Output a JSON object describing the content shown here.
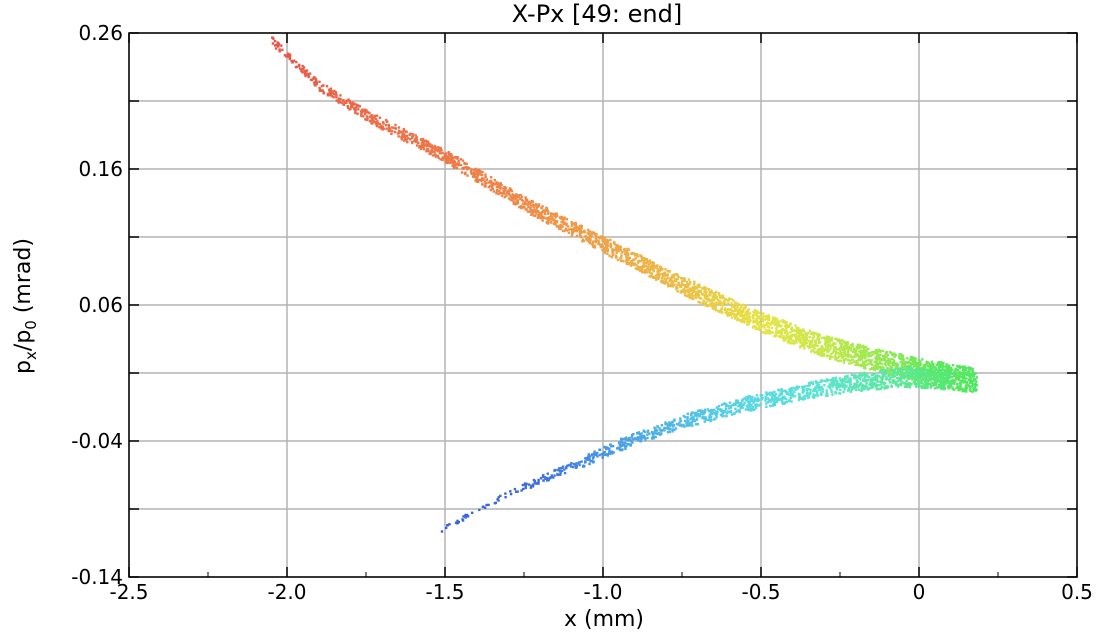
{
  "chart_data": {
    "type": "scatter",
    "title": "X-Px [49: end]",
    "xlabel": "x (mm)",
    "ylabel_parts": {
      "p": "p",
      "x_sub": "x",
      "slash": "/",
      "p0": "p",
      "zero_sub": "0",
      "unit": " (mrad)"
    },
    "xlim": [
      -2.5,
      0.5
    ],
    "ylim": [
      -0.14,
      0.26
    ],
    "xticks": [
      -2.5,
      -2.0,
      -1.5,
      -1.0,
      -0.5,
      0,
      0.5
    ],
    "xtick_labels": [
      "-2.5",
      "-2.0",
      "-1.5",
      "-1.0",
      "-0.5",
      "0",
      "0.5"
    ],
    "yticks": [
      -0.14,
      -0.04,
      0.06,
      0.16,
      0.26
    ],
    "ytick_labels": [
      "-0.14",
      "-0.04",
      "0.06",
      "0.16",
      "0.26"
    ],
    "grid": true,
    "colormap": "rainbow",
    "bands": [
      {
        "name": "upper",
        "points": [
          [
            -2.05,
            0.255
          ],
          [
            -1.9,
            0.222
          ],
          [
            -1.75,
            0.2
          ],
          [
            -1.5,
            0.17
          ],
          [
            -1.25,
            0.135
          ],
          [
            -1.0,
            0.105
          ],
          [
            -0.75,
            0.075
          ],
          [
            -0.5,
            0.048
          ],
          [
            -0.3,
            0.03
          ],
          [
            -0.1,
            0.018
          ],
          [
            0.05,
            0.01
          ],
          [
            0.18,
            0.005
          ]
        ],
        "colors": [
          "#e8524a",
          "#e86048",
          "#ec6c48",
          "#ee7848",
          "#ef8b48",
          "#eea448",
          "#ecbf46",
          "#e6e443",
          "#c6e84a",
          "#8ee854",
          "#5ee85c",
          "#4ee860"
        ]
      },
      {
        "name": "lower",
        "points": [
          [
            -1.52,
            -0.105
          ],
          [
            -1.28,
            -0.075
          ],
          [
            -1.2,
            -0.068
          ],
          [
            -1.1,
            -0.058
          ],
          [
            -0.95,
            -0.042
          ],
          [
            -0.75,
            -0.025
          ],
          [
            -0.55,
            -0.012
          ],
          [
            -0.35,
            -0.002
          ],
          [
            -0.2,
            0.004
          ],
          [
            -0.05,
            0.008
          ],
          [
            0.1,
            0.006
          ]
        ],
        "colors": [
          "#3a5fd9",
          "#3d68dc",
          "#3f70de",
          "#4283e2",
          "#4aa0e4",
          "#52bde6",
          "#58d6e4",
          "#5be2d6",
          "#5ee6b8",
          "#5ce895",
          "#52e870"
        ]
      }
    ],
    "legend": "none"
  }
}
